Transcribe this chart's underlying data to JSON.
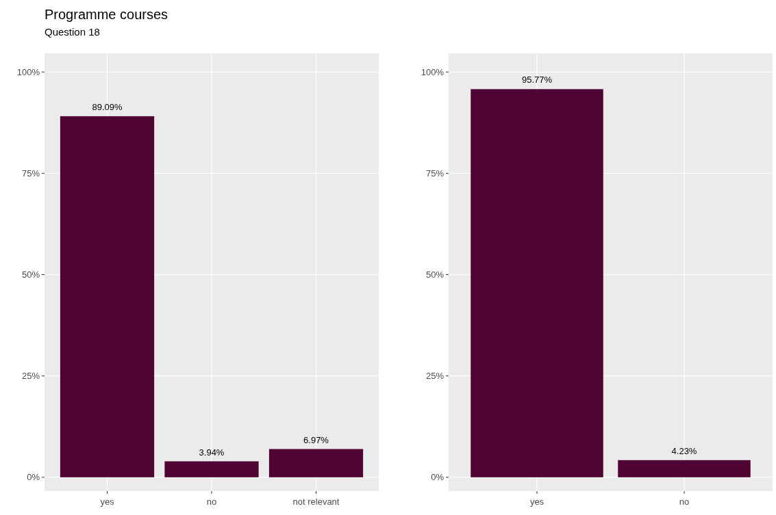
{
  "chart_data": [
    {
      "type": "bar",
      "title": "Programme courses",
      "subtitle": "Question 18",
      "categories": [
        "yes",
        "no",
        "not relevant"
      ],
      "values": [
        89.09,
        3.94,
        6.97
      ],
      "color": "#4f0433",
      "value_labels": [
        "89.09%",
        "3.94%",
        "6.97%"
      ],
      "ylim": [
        -3.4,
        104.6
      ],
      "yticks": [
        {
          "value": 0,
          "label": "0%"
        },
        {
          "value": 25,
          "label": "25%"
        },
        {
          "value": 50,
          "label": "50%"
        },
        {
          "value": 75,
          "label": "75%"
        },
        {
          "value": 100,
          "label": "100%"
        }
      ],
      "grid": true
    },
    {
      "type": "bar",
      "categories": [
        "yes",
        "no"
      ],
      "values": [
        95.77,
        4.23
      ],
      "color": "#4f0433",
      "value_labels": [
        "95.77%",
        "4.23%"
      ],
      "ylim": [
        -3.4,
        104.6
      ],
      "yticks": [
        {
          "value": 0,
          "label": "0%"
        },
        {
          "value": 25,
          "label": "25%"
        },
        {
          "value": 50,
          "label": "50%"
        },
        {
          "value": 75,
          "label": "75%"
        },
        {
          "value": 100,
          "label": "100%"
        }
      ],
      "grid": true
    }
  ]
}
